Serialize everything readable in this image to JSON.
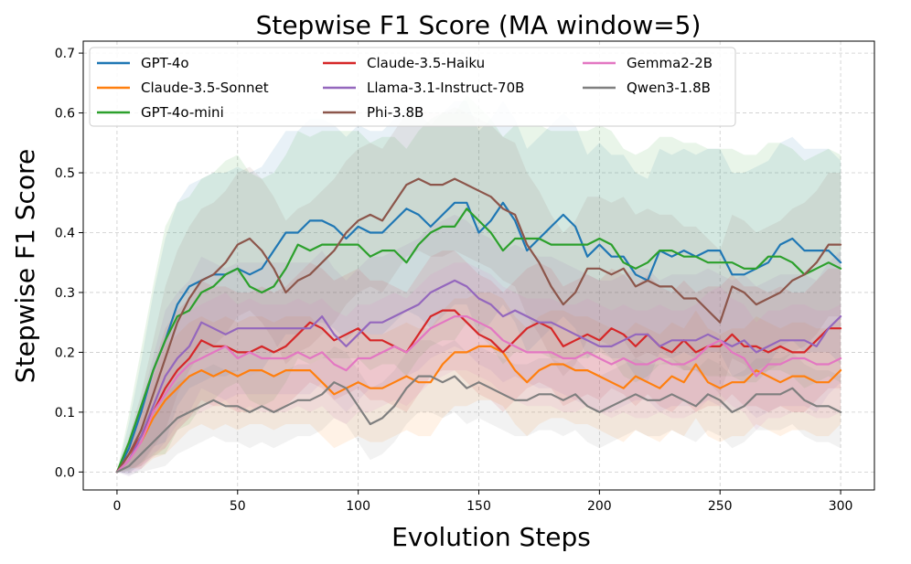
{
  "chart_data": {
    "type": "line",
    "title": "Stepwise F1 Score (MA window=5)",
    "xlabel": "Evolution Steps",
    "ylabel": "Stepwise F1 Score",
    "xlim": [
      -14,
      314
    ],
    "ylim": [
      -0.03,
      0.72
    ],
    "xticks": [
      0,
      50,
      100,
      150,
      200,
      250,
      300
    ],
    "yticks": [
      0.0,
      0.1,
      0.2,
      0.3,
      0.4,
      0.5,
      0.6,
      0.7
    ],
    "xtick_labels": [
      "0",
      "50",
      "100",
      "150",
      "200",
      "250",
      "300"
    ],
    "ytick_labels": [
      "0.0",
      "0.1",
      "0.2",
      "0.3",
      "0.4",
      "0.5",
      "0.6",
      "0.7"
    ],
    "grid": true,
    "legend_position": "top-left",
    "series": [
      {
        "name": "GPT-4o",
        "color": "#1f77b4",
        "band": 0.17,
        "x": [
          0,
          5,
          10,
          15,
          20,
          25,
          30,
          35,
          40,
          45,
          50,
          55,
          60,
          65,
          70,
          75,
          80,
          85,
          90,
          95,
          100,
          105,
          110,
          115,
          120,
          125,
          130,
          135,
          140,
          145,
          150,
          155,
          160,
          165,
          170,
          175,
          180,
          185,
          190,
          195,
          200,
          205,
          210,
          215,
          220,
          225,
          230,
          235,
          240,
          245,
          250,
          255,
          260,
          265,
          270,
          275,
          280,
          285,
          290,
          295,
          300
        ],
        "y": [
          0.0,
          0.04,
          0.1,
          0.17,
          0.22,
          0.28,
          0.31,
          0.32,
          0.33,
          0.33,
          0.34,
          0.33,
          0.34,
          0.37,
          0.4,
          0.4,
          0.42,
          0.42,
          0.41,
          0.39,
          0.41,
          0.4,
          0.4,
          0.42,
          0.44,
          0.43,
          0.41,
          0.43,
          0.45,
          0.45,
          0.4,
          0.42,
          0.45,
          0.42,
          0.37,
          0.39,
          0.41,
          0.43,
          0.41,
          0.36,
          0.38,
          0.36,
          0.36,
          0.33,
          0.32,
          0.37,
          0.36,
          0.37,
          0.36,
          0.37,
          0.37,
          0.33,
          0.33,
          0.34,
          0.35,
          0.38,
          0.39,
          0.37,
          0.37,
          0.37,
          0.35
        ]
      },
      {
        "name": "Claude-3.5-Sonnet",
        "color": "#ff7f0e",
        "band": 0.09,
        "x": [
          0,
          5,
          10,
          15,
          20,
          25,
          30,
          35,
          40,
          45,
          50,
          55,
          60,
          65,
          70,
          75,
          80,
          85,
          90,
          95,
          100,
          105,
          110,
          115,
          120,
          125,
          130,
          135,
          140,
          145,
          150,
          155,
          160,
          165,
          170,
          175,
          180,
          185,
          190,
          195,
          200,
          205,
          210,
          215,
          220,
          225,
          230,
          235,
          240,
          245,
          250,
          255,
          260,
          265,
          270,
          275,
          280,
          285,
          290,
          295,
          300
        ],
        "y": [
          0.0,
          0.03,
          0.05,
          0.09,
          0.12,
          0.14,
          0.16,
          0.17,
          0.16,
          0.17,
          0.16,
          0.17,
          0.17,
          0.16,
          0.17,
          0.17,
          0.17,
          0.15,
          0.13,
          0.14,
          0.15,
          0.14,
          0.14,
          0.15,
          0.16,
          0.15,
          0.15,
          0.18,
          0.2,
          0.2,
          0.21,
          0.21,
          0.2,
          0.17,
          0.15,
          0.17,
          0.18,
          0.18,
          0.17,
          0.17,
          0.16,
          0.15,
          0.14,
          0.16,
          0.15,
          0.14,
          0.16,
          0.15,
          0.18,
          0.15,
          0.14,
          0.15,
          0.15,
          0.17,
          0.16,
          0.15,
          0.16,
          0.16,
          0.15,
          0.15,
          0.17
        ]
      },
      {
        "name": "GPT-4o-mini",
        "color": "#2ca02c",
        "band": 0.19,
        "x": [
          0,
          5,
          10,
          15,
          20,
          25,
          30,
          35,
          40,
          45,
          50,
          55,
          60,
          65,
          70,
          75,
          80,
          85,
          90,
          95,
          100,
          105,
          110,
          115,
          120,
          125,
          130,
          135,
          140,
          145,
          150,
          155,
          160,
          165,
          170,
          175,
          180,
          185,
          190,
          195,
          200,
          205,
          210,
          215,
          220,
          225,
          230,
          235,
          240,
          245,
          250,
          255,
          260,
          265,
          270,
          275,
          280,
          285,
          290,
          295,
          300
        ],
        "y": [
          0.0,
          0.05,
          0.11,
          0.17,
          0.22,
          0.26,
          0.27,
          0.3,
          0.31,
          0.33,
          0.34,
          0.31,
          0.3,
          0.31,
          0.34,
          0.38,
          0.37,
          0.38,
          0.38,
          0.38,
          0.38,
          0.36,
          0.37,
          0.37,
          0.35,
          0.38,
          0.4,
          0.41,
          0.41,
          0.44,
          0.42,
          0.4,
          0.37,
          0.39,
          0.39,
          0.39,
          0.38,
          0.38,
          0.38,
          0.38,
          0.39,
          0.38,
          0.35,
          0.34,
          0.35,
          0.37,
          0.37,
          0.36,
          0.36,
          0.35,
          0.35,
          0.35,
          0.34,
          0.34,
          0.36,
          0.36,
          0.35,
          0.33,
          0.34,
          0.35,
          0.34
        ]
      },
      {
        "name": "Claude-3.5-Haiku",
        "color": "#d62728",
        "band": 0.1,
        "x": [
          0,
          5,
          10,
          15,
          20,
          25,
          30,
          35,
          40,
          45,
          50,
          55,
          60,
          65,
          70,
          75,
          80,
          85,
          90,
          95,
          100,
          105,
          110,
          115,
          120,
          125,
          130,
          135,
          140,
          145,
          150,
          155,
          160,
          165,
          170,
          175,
          180,
          185,
          190,
          195,
          200,
          205,
          210,
          215,
          220,
          225,
          230,
          235,
          240,
          245,
          250,
          255,
          260,
          265,
          270,
          275,
          280,
          285,
          290,
          295,
          300
        ],
        "y": [
          0.0,
          0.03,
          0.06,
          0.1,
          0.14,
          0.17,
          0.19,
          0.22,
          0.21,
          0.21,
          0.2,
          0.2,
          0.21,
          0.2,
          0.21,
          0.23,
          0.25,
          0.24,
          0.22,
          0.23,
          0.24,
          0.22,
          0.22,
          0.21,
          0.2,
          0.23,
          0.26,
          0.27,
          0.27,
          0.25,
          0.23,
          0.22,
          0.2,
          0.22,
          0.24,
          0.25,
          0.24,
          0.21,
          0.22,
          0.23,
          0.22,
          0.24,
          0.23,
          0.21,
          0.23,
          0.21,
          0.2,
          0.22,
          0.2,
          0.21,
          0.21,
          0.23,
          0.21,
          0.21,
          0.2,
          0.21,
          0.2,
          0.2,
          0.22,
          0.24,
          0.24
        ]
      },
      {
        "name": "Llama-3.1-Instruct-70B",
        "color": "#9467bd",
        "band": 0.11,
        "x": [
          0,
          5,
          10,
          15,
          20,
          25,
          30,
          35,
          40,
          45,
          50,
          55,
          60,
          65,
          70,
          75,
          80,
          85,
          90,
          95,
          100,
          105,
          110,
          115,
          120,
          125,
          130,
          135,
          140,
          145,
          150,
          155,
          160,
          165,
          170,
          175,
          180,
          185,
          190,
          195,
          200,
          205,
          210,
          215,
          220,
          225,
          230,
          235,
          240,
          245,
          250,
          255,
          260,
          265,
          270,
          275,
          280,
          285,
          290,
          295,
          300
        ],
        "y": [
          0.0,
          0.02,
          0.06,
          0.11,
          0.16,
          0.19,
          0.21,
          0.25,
          0.24,
          0.23,
          0.24,
          0.24,
          0.24,
          0.24,
          0.24,
          0.24,
          0.24,
          0.26,
          0.23,
          0.21,
          0.23,
          0.25,
          0.25,
          0.26,
          0.27,
          0.28,
          0.3,
          0.31,
          0.32,
          0.31,
          0.29,
          0.28,
          0.26,
          0.27,
          0.26,
          0.25,
          0.25,
          0.24,
          0.23,
          0.22,
          0.21,
          0.21,
          0.22,
          0.23,
          0.23,
          0.21,
          0.22,
          0.22,
          0.22,
          0.23,
          0.22,
          0.21,
          0.22,
          0.2,
          0.21,
          0.22,
          0.22,
          0.22,
          0.21,
          0.24,
          0.26
        ]
      },
      {
        "name": "Phi-3.8B",
        "color": "#8c564b",
        "band": 0.12,
        "x": [
          0,
          5,
          10,
          15,
          20,
          25,
          30,
          35,
          40,
          45,
          50,
          55,
          60,
          65,
          70,
          75,
          80,
          85,
          90,
          95,
          100,
          105,
          110,
          115,
          120,
          125,
          130,
          135,
          140,
          145,
          150,
          155,
          160,
          165,
          170,
          175,
          180,
          185,
          190,
          195,
          200,
          205,
          210,
          215,
          220,
          225,
          230,
          235,
          240,
          245,
          250,
          255,
          260,
          265,
          270,
          275,
          280,
          285,
          290,
          295,
          300
        ],
        "y": [
          0.0,
          0.03,
          0.07,
          0.13,
          0.19,
          0.25,
          0.29,
          0.32,
          0.33,
          0.35,
          0.38,
          0.39,
          0.37,
          0.34,
          0.3,
          0.32,
          0.33,
          0.35,
          0.37,
          0.4,
          0.42,
          0.43,
          0.42,
          0.45,
          0.48,
          0.49,
          0.48,
          0.48,
          0.49,
          0.48,
          0.47,
          0.46,
          0.44,
          0.43,
          0.38,
          0.35,
          0.31,
          0.28,
          0.3,
          0.34,
          0.34,
          0.33,
          0.34,
          0.31,
          0.32,
          0.31,
          0.31,
          0.29,
          0.29,
          0.27,
          0.25,
          0.31,
          0.3,
          0.28,
          0.29,
          0.3,
          0.32,
          0.33,
          0.35,
          0.38,
          0.38
        ]
      },
      {
        "name": "Gemma2-2B",
        "color": "#e377c2",
        "band": 0.09,
        "x": [
          0,
          5,
          10,
          15,
          20,
          25,
          30,
          35,
          40,
          45,
          50,
          55,
          60,
          65,
          70,
          75,
          80,
          85,
          90,
          95,
          100,
          105,
          110,
          115,
          120,
          125,
          130,
          135,
          140,
          145,
          150,
          155,
          160,
          165,
          170,
          175,
          180,
          185,
          190,
          195,
          200,
          205,
          210,
          215,
          220,
          225,
          230,
          235,
          240,
          245,
          250,
          255,
          260,
          265,
          270,
          275,
          280,
          285,
          290,
          295,
          300
        ],
        "y": [
          0.0,
          0.02,
          0.05,
          0.1,
          0.13,
          0.16,
          0.18,
          0.19,
          0.2,
          0.21,
          0.19,
          0.2,
          0.19,
          0.19,
          0.19,
          0.2,
          0.19,
          0.2,
          0.18,
          0.17,
          0.19,
          0.19,
          0.2,
          0.21,
          0.2,
          0.22,
          0.24,
          0.25,
          0.26,
          0.26,
          0.25,
          0.24,
          0.22,
          0.21,
          0.2,
          0.2,
          0.2,
          0.19,
          0.19,
          0.2,
          0.19,
          0.18,
          0.19,
          0.18,
          0.18,
          0.19,
          0.18,
          0.18,
          0.19,
          0.21,
          0.22,
          0.2,
          0.19,
          0.16,
          0.18,
          0.18,
          0.19,
          0.19,
          0.18,
          0.18,
          0.19
        ]
      },
      {
        "name": "Qwen3-1.8B",
        "color": "#7f7f7f",
        "band": 0.06,
        "x": [
          0,
          5,
          10,
          15,
          20,
          25,
          30,
          35,
          40,
          45,
          50,
          55,
          60,
          65,
          70,
          75,
          80,
          85,
          90,
          95,
          100,
          105,
          110,
          115,
          120,
          125,
          130,
          135,
          140,
          145,
          150,
          155,
          160,
          165,
          170,
          175,
          180,
          185,
          190,
          195,
          200,
          205,
          210,
          215,
          220,
          225,
          230,
          235,
          240,
          245,
          250,
          255,
          260,
          265,
          270,
          275,
          280,
          285,
          290,
          295,
          300
        ],
        "y": [
          0.0,
          0.01,
          0.03,
          0.05,
          0.07,
          0.09,
          0.1,
          0.11,
          0.12,
          0.11,
          0.11,
          0.1,
          0.11,
          0.1,
          0.11,
          0.12,
          0.12,
          0.13,
          0.15,
          0.14,
          0.11,
          0.08,
          0.09,
          0.11,
          0.14,
          0.16,
          0.16,
          0.15,
          0.16,
          0.14,
          0.15,
          0.14,
          0.13,
          0.12,
          0.12,
          0.13,
          0.13,
          0.12,
          0.13,
          0.11,
          0.1,
          0.11,
          0.12,
          0.13,
          0.12,
          0.12,
          0.13,
          0.12,
          0.11,
          0.13,
          0.12,
          0.1,
          0.11,
          0.13,
          0.13,
          0.13,
          0.14,
          0.12,
          0.11,
          0.11,
          0.1
        ]
      }
    ]
  }
}
